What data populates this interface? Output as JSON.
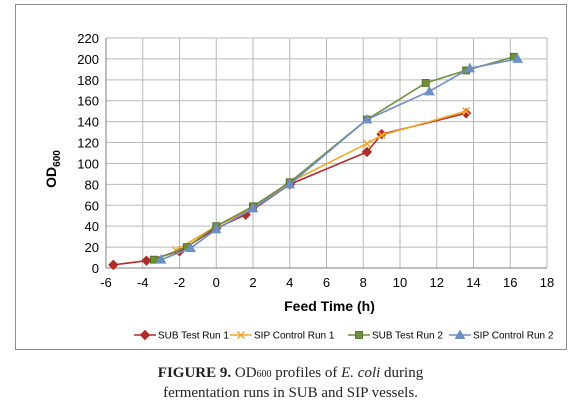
{
  "chart_data": {
    "type": "line",
    "xlabel": "Feed Time (h)",
    "ylabel": "OD",
    "ylabel_subscript": "600",
    "xlim": [
      -6,
      18
    ],
    "ylim": [
      0,
      220
    ],
    "x_ticks": [
      -6,
      -4,
      -2,
      0,
      2,
      4,
      6,
      8,
      10,
      12,
      14,
      16,
      18
    ],
    "y_ticks": [
      0,
      20,
      40,
      60,
      80,
      100,
      120,
      140,
      160,
      180,
      200,
      220
    ],
    "grid": true,
    "legend_position": "bottom",
    "series": [
      {
        "name": "SUB Test Run 1",
        "color": "#b22a2a",
        "marker": "diamond",
        "points": [
          [
            -5.6,
            3
          ],
          [
            -3.8,
            7
          ],
          [
            -2.0,
            16
          ],
          [
            0.0,
            38
          ],
          [
            1.6,
            51
          ],
          [
            4.0,
            80
          ],
          [
            8.2,
            111
          ],
          [
            9.0,
            128
          ],
          [
            13.6,
            148
          ]
        ]
      },
      {
        "name": "SIP Control Run 1",
        "color": "#f2a72b",
        "marker": "cross",
        "points": [
          [
            -2.2,
            17
          ],
          [
            0.0,
            40
          ],
          [
            2.0,
            57
          ],
          [
            4.0,
            82
          ],
          [
            8.2,
            119
          ],
          [
            9.0,
            127
          ],
          [
            13.6,
            150
          ]
        ]
      },
      {
        "name": "SUB Test Run 2",
        "color": "#6f8f3a",
        "marker": "square",
        "points": [
          [
            -3.4,
            8
          ],
          [
            -1.6,
            20
          ],
          [
            0.0,
            40
          ],
          [
            2.0,
            59
          ],
          [
            4.0,
            82
          ],
          [
            8.2,
            142
          ],
          [
            11.4,
            177
          ],
          [
            13.6,
            189
          ],
          [
            16.2,
            202
          ]
        ]
      },
      {
        "name": "SIP Control Run 2",
        "color": "#6d8fc5",
        "marker": "triangle",
        "points": [
          [
            -3.0,
            8
          ],
          [
            -1.4,
            19
          ],
          [
            0.0,
            37
          ],
          [
            2.0,
            57
          ],
          [
            4.0,
            80
          ],
          [
            8.2,
            142
          ],
          [
            11.6,
            169
          ],
          [
            13.8,
            191
          ],
          [
            16.4,
            200
          ]
        ]
      }
    ]
  },
  "caption": {
    "figure_label": "FIGURE 9.",
    "od_text": " OD",
    "od_subscript": "600",
    "text_before_species": " profiles of ",
    "species": "E. coli",
    "text_after_species": " during",
    "line2": "fermentation runs in SUB and SIP vessels."
  }
}
